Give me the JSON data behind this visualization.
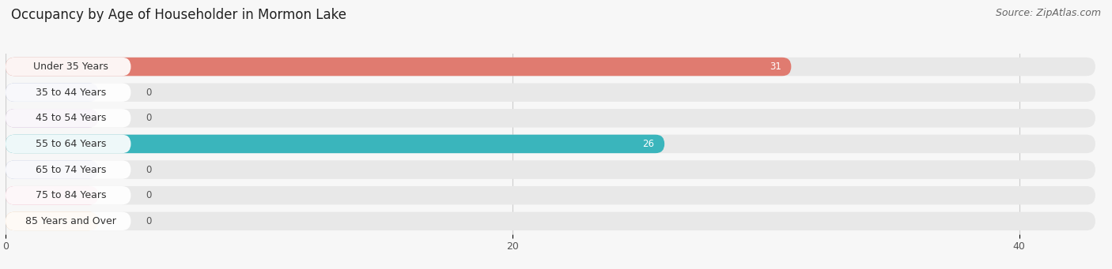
{
  "title": "Occupancy by Age of Householder in Mormon Lake",
  "source": "Source: ZipAtlas.com",
  "categories": [
    "Under 35 Years",
    "35 to 44 Years",
    "45 to 54 Years",
    "55 to 64 Years",
    "65 to 74 Years",
    "75 to 84 Years",
    "85 Years and Over"
  ],
  "values": [
    31,
    0,
    0,
    26,
    0,
    0,
    0
  ],
  "bar_colors": [
    "#e07b70",
    "#aab4d8",
    "#c09ac8",
    "#3ab5bc",
    "#aab4d8",
    "#f0a0b8",
    "#f5c89a"
  ],
  "xlim": [
    0,
    43
  ],
  "xticks": [
    0,
    20,
    40
  ],
  "background_color": "#f7f7f7",
  "bar_bg_color": "#e8e8e8",
  "title_fontsize": 12,
  "source_fontsize": 9,
  "label_fontsize": 9,
  "value_fontsize": 8.5
}
